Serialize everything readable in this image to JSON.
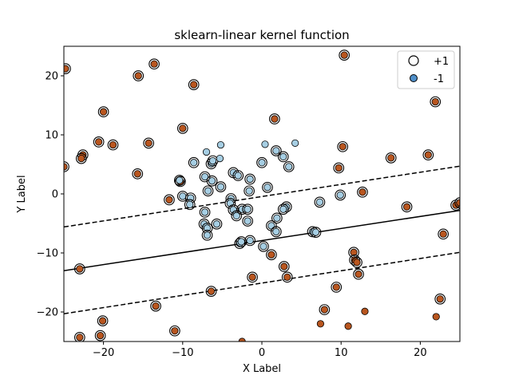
{
  "chart_data": {
    "type": "scatter",
    "title": "sklearn-linear kernel function",
    "xlabel": "X Label",
    "ylabel": "Y Label",
    "xlim": [
      -25,
      25
    ],
    "ylim": [
      -25,
      25
    ],
    "xticks": [
      -20,
      -10,
      0,
      10,
      20
    ],
    "yticks": [
      -20,
      -10,
      0,
      10,
      20
    ],
    "xtick_labels": [
      "−20",
      "−10",
      "0",
      "10",
      "20"
    ],
    "ytick_labels": [
      "−20",
      "−10",
      "0",
      "10",
      "20"
    ],
    "grid": false,
    "legend": {
      "placement": "top-right",
      "entries": [
        {
          "label": "+1",
          "marker": "open-circle"
        },
        {
          "label": "-1",
          "marker": "filled-circle",
          "color": "#4f8fc9"
        }
      ]
    },
    "colors": {
      "class_pos": "#b9561f",
      "class_neg": "#a6cee3",
      "edge": "#000000",
      "support_ring": "#000000"
    },
    "decision_boundary": {
      "x": [
        -25,
        25
      ],
      "y": [
        -13.0,
        -2.8
      ]
    },
    "margins": [
      {
        "x": [
          -25,
          25
        ],
        "y": [
          -5.6,
          4.7
        ]
      },
      {
        "x": [
          -25,
          25
        ],
        "y": [
          -20.3,
          -9.9
        ]
      }
    ],
    "series": [
      {
        "class": "brown",
        "points": [
          [
            -24.8,
            21.2,
            1
          ],
          [
            -15.6,
            20.0,
            1
          ],
          [
            -13.6,
            22.0,
            1
          ],
          [
            -8.6,
            18.5,
            1
          ],
          [
            -20.0,
            13.9,
            1
          ],
          [
            -10.0,
            11.1,
            1
          ],
          [
            1.6,
            12.7,
            1
          ],
          [
            10.4,
            23.5,
            1
          ],
          [
            21.9,
            15.6,
            1
          ],
          [
            -20.6,
            8.8,
            1
          ],
          [
            -18.8,
            8.3,
            1
          ],
          [
            -14.3,
            8.6,
            1
          ],
          [
            -22.6,
            6.6,
            1
          ],
          [
            -22.8,
            6.0,
            1
          ],
          [
            -25.0,
            4.6,
            1
          ],
          [
            -15.7,
            3.4,
            1
          ],
          [
            10.2,
            8.0,
            1
          ],
          [
            9.7,
            4.4,
            1
          ],
          [
            16.3,
            6.1,
            1
          ],
          [
            21.0,
            6.6,
            1
          ],
          [
            -10.3,
            2.1,
            1
          ],
          [
            -11.7,
            -1.0,
            1
          ],
          [
            12.7,
            0.3,
            1
          ],
          [
            18.3,
            -2.2,
            1
          ],
          [
            24.5,
            -1.9,
            1
          ],
          [
            25.0,
            -1.5,
            1
          ],
          [
            -23.0,
            -12.7,
            1
          ],
          [
            -6.4,
            -16.5,
            1
          ],
          [
            -13.4,
            -19.0,
            1
          ],
          [
            -20.1,
            -21.5,
            1
          ],
          [
            -11.0,
            -23.2,
            1
          ],
          [
            -23.0,
            -24.3,
            1
          ],
          [
            -20.4,
            -24.0,
            1
          ],
          [
            -1.2,
            -14.1,
            1
          ],
          [
            1.2,
            -10.3,
            1
          ],
          [
            2.8,
            -12.3,
            1
          ],
          [
            3.2,
            -14.1,
            1
          ],
          [
            9.4,
            -15.8,
            1
          ],
          [
            7.9,
            -19.6,
            1
          ],
          [
            11.6,
            -9.9,
            1
          ],
          [
            11.7,
            -11.2,
            1
          ],
          [
            12.0,
            -11.6,
            1
          ],
          [
            12.2,
            -13.6,
            1
          ],
          [
            22.5,
            -17.8,
            1
          ],
          [
            22.9,
            -6.8,
            1
          ],
          [
            7.4,
            -22.0,
            0
          ],
          [
            10.9,
            -22.4,
            0
          ],
          [
            13.0,
            -19.9,
            0
          ],
          [
            22.0,
            -20.8,
            0
          ],
          [
            -2.5,
            -25.0,
            0
          ]
        ]
      },
      {
        "class": "light-blue",
        "points": [
          [
            -8.6,
            5.3,
            1
          ],
          [
            -6.4,
            5.1,
            1
          ],
          [
            -6.2,
            5.6,
            1
          ],
          [
            -10.4,
            2.3,
            1
          ],
          [
            -7.2,
            2.9,
            1
          ],
          [
            -6.3,
            2.2,
            1
          ],
          [
            -5.2,
            1.2,
            1
          ],
          [
            -6.8,
            0.5,
            1
          ],
          [
            -3.6,
            3.6,
            1
          ],
          [
            -3.0,
            3.1,
            1
          ],
          [
            -1.5,
            2.5,
            1
          ],
          [
            -1.6,
            0.5,
            1
          ],
          [
            -10.0,
            -0.4,
            1
          ],
          [
            -9.0,
            -0.7,
            1
          ],
          [
            -9.1,
            -1.8,
            1
          ],
          [
            -3.9,
            -0.8,
            1
          ],
          [
            -4.0,
            -1.6,
            1
          ],
          [
            -7.2,
            -3.1,
            1
          ],
          [
            -3.6,
            -2.7,
            1
          ],
          [
            -2.5,
            -2.6,
            1
          ],
          [
            -1.8,
            -2.6,
            1
          ],
          [
            -3.2,
            -3.7,
            1
          ],
          [
            -1.8,
            -4.6,
            1
          ],
          [
            -7.3,
            -5.1,
            1
          ],
          [
            -6.9,
            -5.8,
            1
          ],
          [
            -5.7,
            -5.1,
            1
          ],
          [
            -6.9,
            -7.0,
            1
          ],
          [
            -2.8,
            -8.4,
            1
          ],
          [
            -2.6,
            -8.1,
            1
          ],
          [
            -1.5,
            -7.9,
            1
          ],
          [
            0.2,
            -8.9,
            1
          ],
          [
            0.0,
            5.3,
            1
          ],
          [
            0.7,
            1.1,
            1
          ],
          [
            1.8,
            7.3,
            1
          ],
          [
            2.7,
            6.3,
            1
          ],
          [
            3.4,
            4.6,
            1
          ],
          [
            3.1,
            -2.2,
            1
          ],
          [
            2.7,
            -2.6,
            1
          ],
          [
            1.9,
            -4.1,
            1
          ],
          [
            1.2,
            -5.4,
            1
          ],
          [
            1.8,
            -6.4,
            1
          ],
          [
            7.3,
            -1.4,
            1
          ],
          [
            9.9,
            -0.2,
            1
          ],
          [
            6.4,
            -6.4,
            1
          ],
          [
            6.8,
            -6.5,
            1
          ],
          [
            -5.2,
            8.3,
            0
          ],
          [
            -7.0,
            7.1,
            0
          ],
          [
            -5.3,
            6.0,
            0
          ],
          [
            0.4,
            8.4,
            0
          ],
          [
            4.2,
            8.6,
            0
          ]
        ]
      }
    ]
  }
}
